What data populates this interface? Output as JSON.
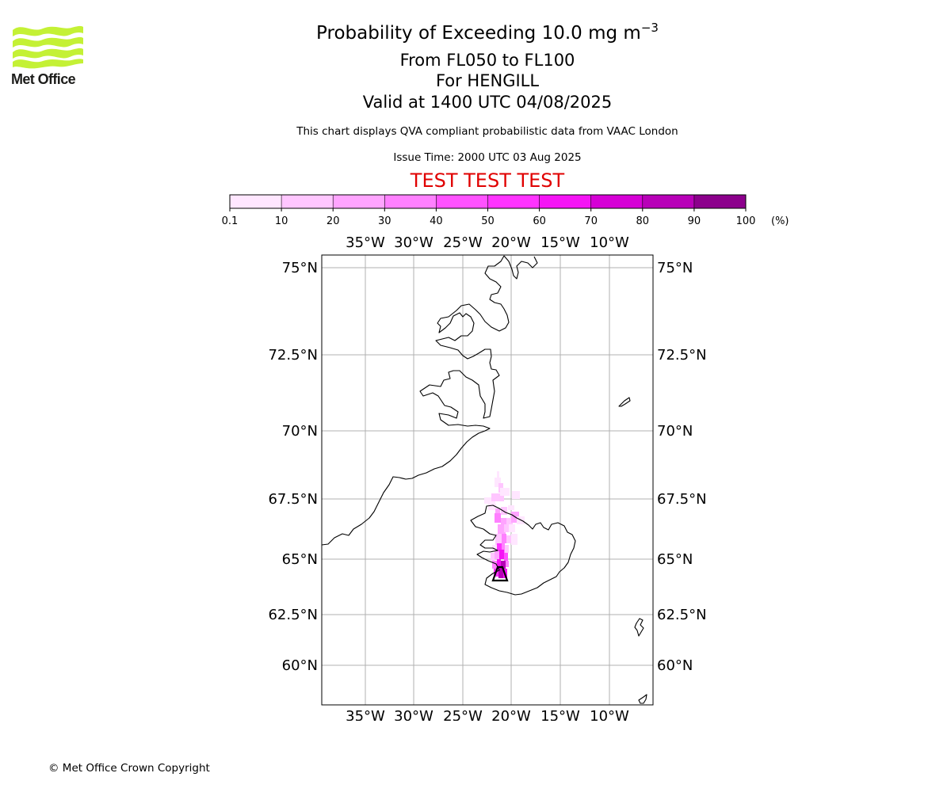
{
  "logo": {
    "text": "Met Office",
    "color": "#c4f135"
  },
  "header": {
    "title": "Probability of Exceeding 10.0 mg m",
    "title_exponent": "−3",
    "flight_levels": "From FL050 to FL100",
    "volcano": "For HENGILL",
    "valid_time": "Valid at 1400 UTC 04/08/2025",
    "subtitle": "This chart displays QVA compliant probabilistic data from VAAC London",
    "issue_time": "Issue Time: 2000 UTC 03 Aug 2025",
    "test_banner": "TEST TEST TEST",
    "test_banner_color": "#e00000"
  },
  "colorbar": {
    "unit_label": "(%)",
    "ticks": [
      "0.1",
      "10",
      "20",
      "30",
      "40",
      "50",
      "60",
      "70",
      "80",
      "90",
      "100"
    ],
    "colors": [
      "#ffe6ff",
      "#ffc6ff",
      "#ffa4ff",
      "#ff80ff",
      "#ff52ff",
      "#ff33ff",
      "#f514f5",
      "#d600d6",
      "#b800b8",
      "#8c008c",
      "#660066"
    ]
  },
  "map": {
    "projection": "Polar stereographic",
    "lon_labels": [
      "35°W",
      "30°W",
      "25°W",
      "20°W",
      "15°W",
      "10°W"
    ],
    "lat_labels": [
      "75°N",
      "72.5°N",
      "70°N",
      "67.5°N",
      "65°N",
      "62.5°N",
      "60°N"
    ],
    "gridlines": true,
    "volcano_marker": "triangle",
    "features": [
      "Greenland east coast",
      "Iceland",
      "Jan Mayen",
      "Faroe Islands",
      "Shetland"
    ]
  },
  "footer": {
    "copyright": "© Met Office Crown Copyright"
  }
}
